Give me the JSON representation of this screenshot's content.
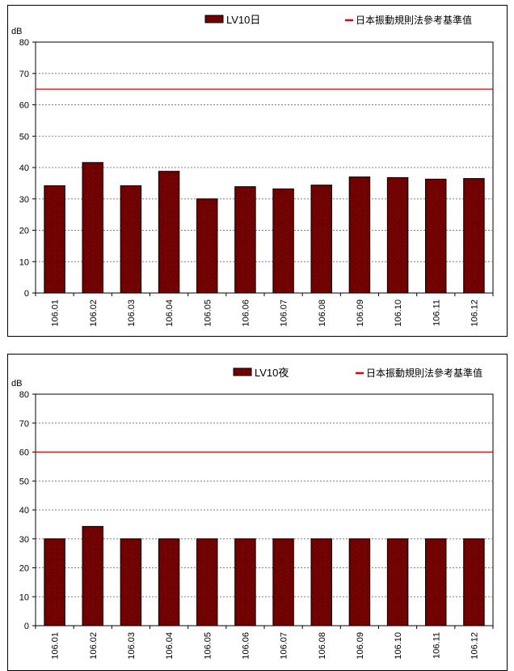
{
  "chart_data": [
    {
      "type": "bar",
      "unit": "dB",
      "categories": [
        "106.01",
        "106.02",
        "106.03",
        "106.04",
        "106.05",
        "106.06",
        "106.07",
        "106.08",
        "106.09",
        "106.10",
        "106.11",
        "106.12"
      ],
      "series": [
        {
          "name": "LV10日",
          "color": "#800000",
          "values": [
            34.2,
            41.6,
            34.2,
            38.8,
            30.0,
            33.9,
            33.2,
            34.4,
            37.0,
            36.8,
            36.3,
            36.5
          ]
        }
      ],
      "reference": {
        "name": "日本振動規則法參考基準值",
        "value": 65,
        "color": "#e00000"
      },
      "ylim": [
        0,
        80
      ],
      "yticks": [
        0,
        10,
        20,
        30,
        40,
        50,
        60,
        70,
        80
      ],
      "grid": true,
      "legend": "top"
    },
    {
      "type": "bar",
      "unit": "dB",
      "categories": [
        "106.01",
        "106.02",
        "106.03",
        "106.04",
        "106.05",
        "106.06",
        "106.07",
        "106.08",
        "106.09",
        "106.10",
        "106.11",
        "106.12"
      ],
      "series": [
        {
          "name": "LV10夜",
          "color": "#800000",
          "values": [
            30.0,
            34.3,
            30.0,
            30.0,
            30.0,
            30.0,
            30.0,
            30.0,
            30.0,
            30.0,
            30.0,
            30.0
          ]
        }
      ],
      "reference": {
        "name": "日本振動規則法參考基準值",
        "value": 60,
        "color": "#e00000"
      },
      "ylim": [
        0,
        80
      ],
      "yticks": [
        0,
        10,
        20,
        30,
        40,
        50,
        60,
        70,
        80
      ],
      "grid": true,
      "legend": "top"
    }
  ]
}
